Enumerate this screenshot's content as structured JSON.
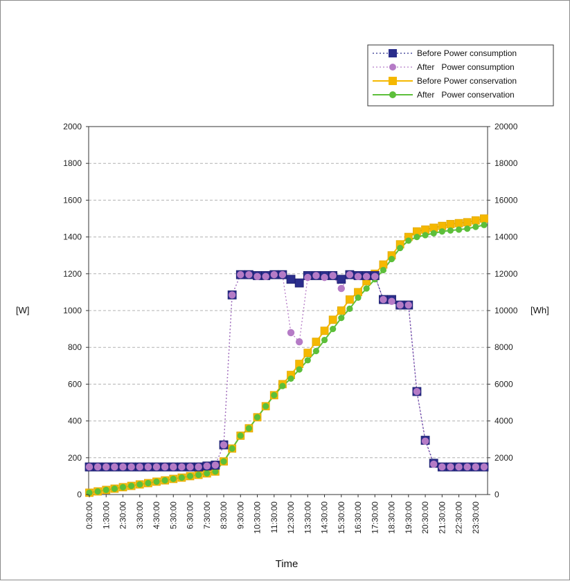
{
  "chart_data": {
    "type": "line",
    "xlabel": "Time",
    "ylabel_left": "[W]",
    "ylabel_right": "[Wh]",
    "ylim_left": [
      0,
      2000
    ],
    "ylim_right": [
      0,
      20000
    ],
    "yticks_left": [
      "0",
      "200",
      "400",
      "600",
      "800",
      "1000",
      "1200",
      "1400",
      "1600",
      "1800",
      "2000"
    ],
    "yticks_right": [
      "0",
      "2000",
      "4000",
      "6000",
      "8000",
      "10000",
      "12000",
      "14000",
      "16000",
      "18000",
      "20000"
    ],
    "grid": true,
    "legend_position": "top-right",
    "legend_labels": [
      "Before Power consumption",
      "After   Power consumption",
      "Before Power conservation",
      "After   Power conservation"
    ],
    "x": [
      "0:30:00",
      "1:00:00",
      "1:30:00",
      "2:00:00",
      "2:30:00",
      "3:00:00",
      "3:30:00",
      "4:00:00",
      "4:30:00",
      "5:00:00",
      "5:30:00",
      "6:00:00",
      "6:30:00",
      "7:00:00",
      "7:30:00",
      "8:00:00",
      "8:30:00",
      "9:00:00",
      "9:30:00",
      "10:00:00",
      "10:30:00",
      "11:00:00",
      "11:30:00",
      "12:00:00",
      "12:30:00",
      "13:00:00",
      "13:30:00",
      "14:00:00",
      "14:30:00",
      "15:00:00",
      "15:30:00",
      "16:00:00",
      "16:30:00",
      "17:00:00",
      "17:30:00",
      "18:00:00",
      "18:30:00",
      "19:00:00",
      "19:30:00",
      "20:00:00",
      "20:30:00",
      "21:00:00",
      "21:30:00",
      "22:00:00",
      "22:30:00",
      "23:00:00",
      "23:30:00",
      "24:00:00"
    ],
    "xtick_labels": [
      "0:30:00",
      "1:30:00",
      "2:30:00",
      "3:30:00",
      "4:30:00",
      "5:30:00",
      "6:30:00",
      "7:30:00",
      "8:30:00",
      "9:30:00",
      "10:30:00",
      "11:30:00",
      "12:30:00",
      "13:30:00",
      "14:30:00",
      "15:30:00",
      "16:30:00",
      "17:30:00",
      "18:30:00",
      "19:30:00",
      "20:30:00",
      "21:30:00",
      "22:30:00",
      "23:30:00"
    ],
    "series": [
      {
        "name": "Before Power consumption",
        "axis": "left",
        "color": "#2b2e8c",
        "marker": "square",
        "line": "dotted",
        "values": [
          150,
          150,
          150,
          150,
          150,
          150,
          150,
          150,
          150,
          150,
          150,
          150,
          150,
          150,
          155,
          160,
          270,
          1085,
          1195,
          1195,
          1190,
          1190,
          1195,
          1195,
          1170,
          1150,
          1190,
          1190,
          1190,
          1190,
          1170,
          1195,
          1190,
          1190,
          1190,
          1060,
          1060,
          1030,
          1030,
          560,
          295,
          170,
          150,
          150,
          150,
          150,
          150,
          150
        ]
      },
      {
        "name": "After Power consumption",
        "axis": "left",
        "color": "#b57bc6",
        "marker": "circle",
        "line": "dotted",
        "values": [
          150,
          150,
          150,
          150,
          150,
          150,
          150,
          150,
          150,
          150,
          150,
          150,
          150,
          150,
          155,
          160,
          270,
          1085,
          1195,
          1195,
          1185,
          1185,
          1195,
          1195,
          880,
          830,
          1180,
          1190,
          1180,
          1190,
          1120,
          1195,
          1185,
          1185,
          1185,
          1060,
          1050,
          1030,
          1030,
          560,
          290,
          165,
          150,
          150,
          150,
          150,
          150,
          150
        ]
      },
      {
        "name": "Before Power conservation",
        "axis": "right",
        "color": "#f5b800",
        "marker": "square",
        "line": "solid",
        "values": [
          100,
          170,
          250,
          320,
          400,
          470,
          550,
          620,
          700,
          770,
          850,
          920,
          1000,
          1070,
          1150,
          1250,
          1800,
          2500,
          3200,
          3600,
          4200,
          4800,
          5400,
          6000,
          6500,
          7100,
          7700,
          8300,
          8900,
          9500,
          10000,
          10600,
          11000,
          11600,
          12000,
          12500,
          13000,
          13600,
          14000,
          14300,
          14400,
          14500,
          14600,
          14700,
          14750,
          14800,
          14900,
          15000
        ]
      },
      {
        "name": "After Power conservation",
        "axis": "right",
        "color": "#5cbf3a",
        "marker": "circle",
        "line": "solid",
        "values": [
          100,
          170,
          250,
          320,
          400,
          470,
          550,
          620,
          700,
          770,
          850,
          920,
          1000,
          1070,
          1150,
          1250,
          1800,
          2500,
          3200,
          3600,
          4200,
          4800,
          5400,
          5900,
          6300,
          6800,
          7300,
          7800,
          8400,
          9000,
          9600,
          10100,
          10700,
          11200,
          11700,
          12200,
          12800,
          13400,
          13800,
          14000,
          14100,
          14200,
          14300,
          14350,
          14400,
          14450,
          14550,
          14650
        ]
      }
    ]
  }
}
